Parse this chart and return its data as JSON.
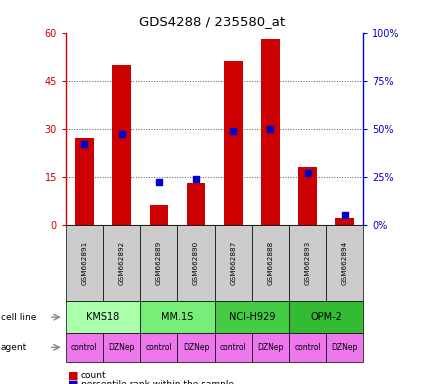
{
  "title": "GDS4288 / 235580_at",
  "samples": [
    "GSM662891",
    "GSM662892",
    "GSM662889",
    "GSM662890",
    "GSM662887",
    "GSM662888",
    "GSM662893",
    "GSM662894"
  ],
  "count_values": [
    27,
    50,
    6,
    13,
    51,
    58,
    18,
    2
  ],
  "percentile_values": [
    42,
    47,
    22,
    24,
    49,
    50,
    27,
    5
  ],
  "cell_line_groups": [
    {
      "label": "KMS18",
      "start": 0,
      "end": 2,
      "color": "#aaffaa"
    },
    {
      "label": "MM.1S",
      "start": 2,
      "end": 4,
      "color": "#77ee77"
    },
    {
      "label": "NCI-H929",
      "start": 4,
      "end": 6,
      "color": "#44cc44"
    },
    {
      "label": "OPM-2",
      "start": 6,
      "end": 8,
      "color": "#33bb33"
    }
  ],
  "agents": [
    "control",
    "DZNep",
    "control",
    "DZNep",
    "control",
    "DZNep",
    "control",
    "DZNep"
  ],
  "agent_color": "#ee77ee",
  "gsm_bg_color": "#cccccc",
  "ylim_left": [
    0,
    60
  ],
  "ylim_right": [
    0,
    100
  ],
  "yticks_left": [
    0,
    15,
    30,
    45,
    60
  ],
  "yticks_right": [
    0,
    25,
    50,
    75,
    100
  ],
  "bar_color": "#cc0000",
  "dot_color": "#0000cc",
  "bar_width": 0.5,
  "dot_size": 22,
  "grid_color": "#555555",
  "left_axis_color": "#cc0000",
  "right_axis_color": "#0000cc"
}
